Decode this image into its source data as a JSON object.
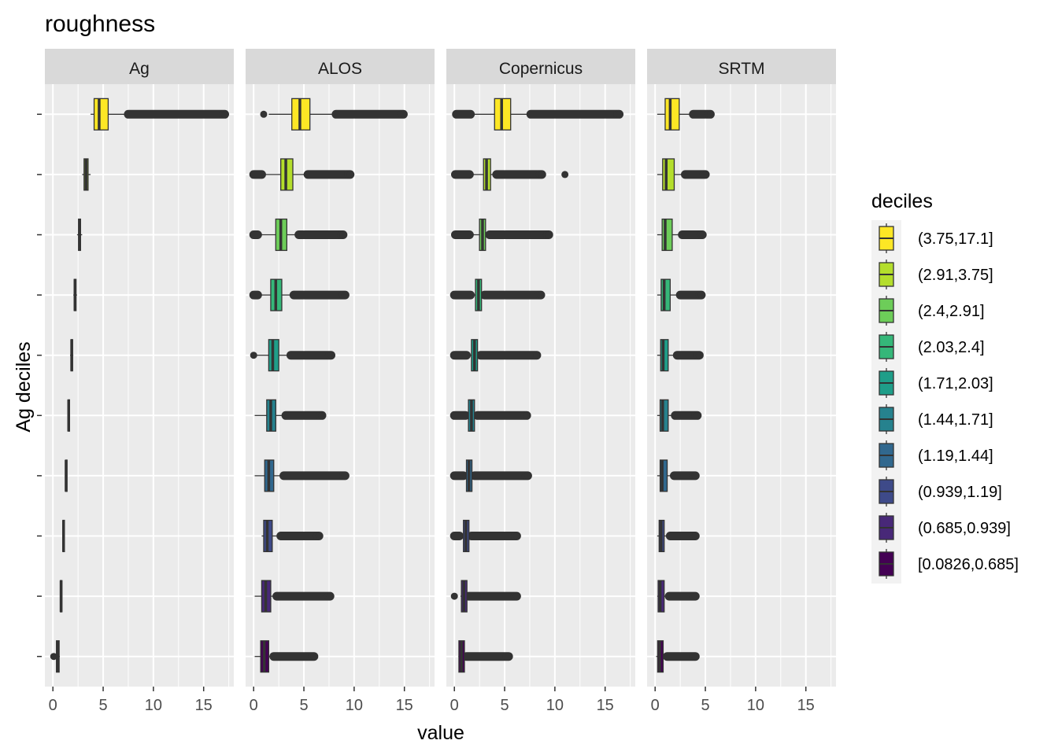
{
  "chart_data": {
    "type": "boxplot",
    "title": "roughness",
    "xlabel": "value",
    "ylabel": "Ag deciles",
    "xlim": [
      -0.8,
      18.0
    ],
    "x_ticks": [
      0,
      5,
      10,
      15
    ],
    "panels": [
      "Ag",
      "ALOS",
      "Copernicus",
      "SRTM"
    ],
    "legend": {
      "title": "deciles",
      "position": "right",
      "items": [
        {
          "label": "(3.75,17.1]",
          "color": "#FDE725"
        },
        {
          "label": "(2.91,3.75]",
          "color": "#B4DE2C"
        },
        {
          "label": "(2.4,2.91]",
          "color": "#6DCD59"
        },
        {
          "label": "(2.03,2.4]",
          "color": "#35B779"
        },
        {
          "label": "(1.71,2.03]",
          "color": "#1F9E89"
        },
        {
          "label": "(1.44,1.71]",
          "color": "#26828E"
        },
        {
          "label": "(1.19,1.44]",
          "color": "#31688E"
        },
        {
          "label": "(0.939,1.19]",
          "color": "#3E4A89"
        },
        {
          "label": "(0.685,0.939]",
          "color": "#482878"
        },
        {
          "label": "[0.0826,0.685]",
          "color": "#440154"
        }
      ]
    },
    "series": [
      {
        "panel": "Ag",
        "boxes": [
          {
            "q1": 4.1,
            "median": 4.6,
            "q3": 5.5,
            "wlo": 3.75,
            "whi": 7.5,
            "outlier_hi_start": 7.5,
            "outlier_hi_end": 17.1,
            "outlier_lo": []
          },
          {
            "q1": 3.1,
            "median": 3.3,
            "q3": 3.5,
            "wlo": 2.91,
            "whi": 3.75,
            "outlier_hi_start": null,
            "outlier_hi_end": null,
            "outlier_lo": []
          },
          {
            "q1": 2.55,
            "median": 2.65,
            "q3": 2.75,
            "wlo": 2.4,
            "whi": 2.91,
            "outlier_hi_start": null,
            "outlier_hi_end": null,
            "outlier_lo": []
          },
          {
            "q1": 2.12,
            "median": 2.2,
            "q3": 2.3,
            "wlo": 2.03,
            "whi": 2.4,
            "outlier_hi_start": null,
            "outlier_hi_end": null,
            "outlier_lo": []
          },
          {
            "q1": 1.8,
            "median": 1.87,
            "q3": 1.95,
            "wlo": 1.71,
            "whi": 2.03,
            "outlier_hi_start": null,
            "outlier_hi_end": null,
            "outlier_lo": []
          },
          {
            "q1": 1.5,
            "median": 1.57,
            "q3": 1.64,
            "wlo": 1.44,
            "whi": 1.71,
            "outlier_hi_start": null,
            "outlier_hi_end": null,
            "outlier_lo": []
          },
          {
            "q1": 1.25,
            "median": 1.31,
            "q3": 1.38,
            "wlo": 1.19,
            "whi": 1.44,
            "outlier_hi_start": null,
            "outlier_hi_end": null,
            "outlier_lo": []
          },
          {
            "q1": 0.99,
            "median": 1.06,
            "q3": 1.13,
            "wlo": 0.939,
            "whi": 1.19,
            "outlier_hi_start": null,
            "outlier_hi_end": null,
            "outlier_lo": []
          },
          {
            "q1": 0.74,
            "median": 0.81,
            "q3": 0.88,
            "wlo": 0.685,
            "whi": 0.939,
            "outlier_hi_start": null,
            "outlier_hi_end": null,
            "outlier_lo": []
          },
          {
            "q1": 0.35,
            "median": 0.5,
            "q3": 0.62,
            "wlo": 0.2,
            "whi": 0.685,
            "outlier_hi_start": null,
            "outlier_hi_end": null,
            "outlier_lo": [
              0.0826
            ]
          }
        ]
      },
      {
        "panel": "ALOS",
        "boxes": [
          {
            "q1": 3.8,
            "median": 4.6,
            "q3": 5.6,
            "wlo": 1.5,
            "whi": 8.2,
            "outlier_hi_start": 8.2,
            "outlier_hi_end": 14.9,
            "outlier_lo": [
              1.0
            ]
          },
          {
            "q1": 2.7,
            "median": 3.2,
            "q3": 3.9,
            "wlo": 1.0,
            "whi": 5.4,
            "outlier_hi_start": 5.4,
            "outlier_hi_end": 9.6,
            "outlier_lo": [
              0.0,
              0.8
            ]
          },
          {
            "q1": 2.2,
            "median": 2.7,
            "q3": 3.3,
            "wlo": 0.5,
            "whi": 4.5,
            "outlier_hi_start": 4.5,
            "outlier_hi_end": 8.9,
            "outlier_lo": [
              0.0,
              0.4
            ]
          },
          {
            "q1": 1.7,
            "median": 2.2,
            "q3": 2.8,
            "wlo": 0.5,
            "whi": 4.0,
            "outlier_hi_start": 4.0,
            "outlier_hi_end": 9.1,
            "outlier_lo": [
              0.0,
              0.4
            ]
          },
          {
            "q1": 1.5,
            "median": 1.9,
            "q3": 2.5,
            "wlo": 0.3,
            "whi": 3.7,
            "outlier_hi_start": 3.7,
            "outlier_hi_end": 7.7,
            "outlier_lo": [
              0.0
            ]
          },
          {
            "q1": 1.3,
            "median": 1.7,
            "q3": 2.2,
            "wlo": 0.1,
            "whi": 3.2,
            "outlier_hi_start": 3.2,
            "outlier_hi_end": 6.8,
            "outlier_lo": []
          },
          {
            "q1": 1.1,
            "median": 1.5,
            "q3": 2.0,
            "wlo": 0.1,
            "whi": 3.0,
            "outlier_hi_start": 3.0,
            "outlier_hi_end": 9.1,
            "outlier_lo": []
          },
          {
            "q1": 1.0,
            "median": 1.35,
            "q3": 1.85,
            "wlo": 0.8,
            "whi": 2.7,
            "outlier_hi_start": 2.7,
            "outlier_hi_end": 6.5,
            "outlier_lo": []
          },
          {
            "q1": 0.8,
            "median": 1.2,
            "q3": 1.7,
            "wlo": 0.1,
            "whi": 2.3,
            "outlier_hi_start": 2.3,
            "outlier_hi_end": 7.6,
            "outlier_lo": []
          },
          {
            "q1": 0.7,
            "median": 1.05,
            "q3": 1.5,
            "wlo": 0.1,
            "whi": 2.0,
            "outlier_hi_start": 2.0,
            "outlier_hi_end": 6.0,
            "outlier_lo": []
          }
        ]
      },
      {
        "panel": "Copernicus",
        "boxes": [
          {
            "q1": 4.0,
            "median": 4.7,
            "q3": 5.6,
            "wlo": 2.0,
            "whi": 7.6,
            "outlier_hi_start": 7.6,
            "outlier_hi_end": 16.4,
            "outlier_lo": [
              0.2,
              1.6
            ]
          },
          {
            "q1": 2.9,
            "median": 3.2,
            "q3": 3.6,
            "wlo": 1.9,
            "whi": 4.2,
            "outlier_hi_start": 4.2,
            "outlier_hi_end": 8.7,
            "outlier_lo": [
              0.1,
              1.5
            ],
            "extra_hi": [
              11.0
            ]
          },
          {
            "q1": 2.5,
            "median": 2.8,
            "q3": 3.1,
            "wlo": 1.8,
            "whi": 3.5,
            "outlier_hi_start": 3.5,
            "outlier_hi_end": 9.4,
            "outlier_lo": [
              0.1,
              1.5
            ]
          },
          {
            "q1": 2.1,
            "median": 2.4,
            "q3": 2.7,
            "wlo": 1.7,
            "whi": 3.0,
            "outlier_hi_start": 3.0,
            "outlier_hi_end": 8.6,
            "outlier_lo": [
              0.0,
              1.6
            ]
          },
          {
            "q1": 1.7,
            "median": 2.0,
            "q3": 2.3,
            "wlo": 1.6,
            "whi": 2.6,
            "outlier_hi_start": 2.6,
            "outlier_hi_end": 8.2,
            "outlier_lo": [
              0.0,
              1.2
            ]
          },
          {
            "q1": 1.4,
            "median": 1.7,
            "q3": 2.0,
            "wlo": 1.3,
            "whi": 2.3,
            "outlier_hi_start": 2.3,
            "outlier_hi_end": 7.2,
            "outlier_lo": [
              0.0,
              1.1
            ]
          },
          {
            "q1": 1.2,
            "median": 1.45,
            "q3": 1.75,
            "wlo": 1.1,
            "whi": 2.0,
            "outlier_hi_start": 2.0,
            "outlier_hi_end": 7.3,
            "outlier_lo": [
              0.0,
              0.9
            ]
          },
          {
            "q1": 0.9,
            "median": 1.15,
            "q3": 1.45,
            "wlo": 0.8,
            "whi": 1.7,
            "outlier_hi_start": 1.7,
            "outlier_hi_end": 6.2,
            "outlier_lo": [
              0.0,
              0.5
            ]
          },
          {
            "q1": 0.7,
            "median": 0.95,
            "q3": 1.25,
            "wlo": 0.6,
            "whi": 1.4,
            "outlier_hi_start": 1.4,
            "outlier_hi_end": 6.2,
            "outlier_lo": [
              0.0
            ]
          },
          {
            "q1": 0.45,
            "median": 0.7,
            "q3": 1.0,
            "wlo": 0.4,
            "whi": 1.2,
            "outlier_hi_start": 1.2,
            "outlier_hi_end": 5.4,
            "outlier_lo": []
          }
        ]
      },
      {
        "panel": "SRTM",
        "boxes": [
          {
            "q1": 1.0,
            "median": 1.5,
            "q3": 2.4,
            "wlo": 0.2,
            "whi": 3.8,
            "outlier_hi_start": 3.8,
            "outlier_hi_end": 5.5,
            "outlier_lo": []
          },
          {
            "q1": 0.75,
            "median": 1.1,
            "q3": 1.9,
            "wlo": 0.2,
            "whi": 3.0,
            "outlier_hi_start": 3.0,
            "outlier_hi_end": 5.0,
            "outlier_lo": []
          },
          {
            "q1": 0.7,
            "median": 1.0,
            "q3": 1.7,
            "wlo": 0.2,
            "whi": 2.7,
            "outlier_hi_start": 2.7,
            "outlier_hi_end": 4.7,
            "outlier_lo": []
          },
          {
            "q1": 0.6,
            "median": 0.9,
            "q3": 1.5,
            "wlo": 0.2,
            "whi": 2.5,
            "outlier_hi_start": 2.5,
            "outlier_hi_end": 4.6,
            "outlier_lo": []
          },
          {
            "q1": 0.55,
            "median": 0.8,
            "q3": 1.3,
            "wlo": 0.2,
            "whi": 2.2,
            "outlier_hi_start": 2.2,
            "outlier_hi_end": 4.4,
            "outlier_lo": []
          },
          {
            "q1": 0.5,
            "median": 0.75,
            "q3": 1.3,
            "wlo": 0.2,
            "whi": 2.0,
            "outlier_hi_start": 2.0,
            "outlier_hi_end": 4.2,
            "outlier_lo": []
          },
          {
            "q1": 0.5,
            "median": 0.7,
            "q3": 1.2,
            "wlo": 0.2,
            "whi": 1.9,
            "outlier_hi_start": 1.9,
            "outlier_hi_end": 4.0,
            "outlier_lo": []
          },
          {
            "q1": 0.4,
            "median": 0.6,
            "q3": 0.9,
            "wlo": 0.2,
            "whi": 1.5,
            "outlier_hi_start": 1.5,
            "outlier_hi_end": 4.0,
            "outlier_lo": []
          },
          {
            "q1": 0.3,
            "median": 0.5,
            "q3": 0.9,
            "wlo": 0.2,
            "whi": 1.4,
            "outlier_hi_start": 1.4,
            "outlier_hi_end": 4.0,
            "outlier_lo": []
          },
          {
            "q1": 0.25,
            "median": 0.45,
            "q3": 0.8,
            "wlo": 0.1,
            "whi": 1.2,
            "outlier_hi_start": 1.2,
            "outlier_hi_end": 4.0,
            "outlier_lo": []
          }
        ]
      }
    ]
  }
}
